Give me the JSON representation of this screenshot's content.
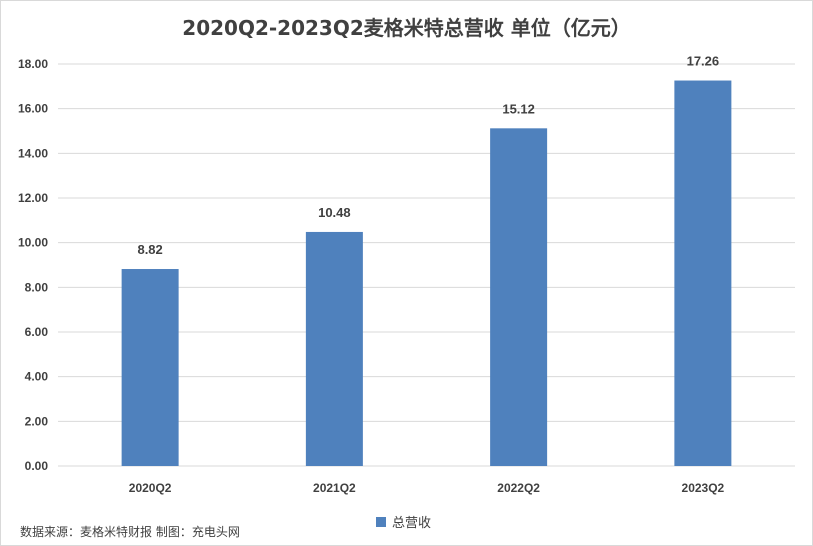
{
  "chart_data": {
    "type": "bar",
    "title": "2020Q2-2023Q2麦格米特总营收 单位（亿元）",
    "categories": [
      "2020Q2",
      "2021Q2",
      "2022Q2",
      "2023Q2"
    ],
    "series": [
      {
        "name": "总营收",
        "values": [
          8.82,
          10.48,
          15.12,
          17.26
        ],
        "color": "#4f81bd"
      }
    ],
    "data_labels": [
      "8.82",
      "10.48",
      "15.12",
      "17.26"
    ],
    "y_ticks": [
      "0.00",
      "2.00",
      "4.00",
      "6.00",
      "8.00",
      "10.00",
      "12.00",
      "14.00",
      "16.00",
      "18.00"
    ],
    "ylim": [
      0,
      18
    ],
    "grid": true,
    "legend_position": "bottom"
  },
  "source_note": "数据来源：麦格米特财报 制图：充电头网",
  "colors": {
    "bar": "#4f81bd",
    "grid": "#d9d9d9",
    "text": "#404040"
  }
}
